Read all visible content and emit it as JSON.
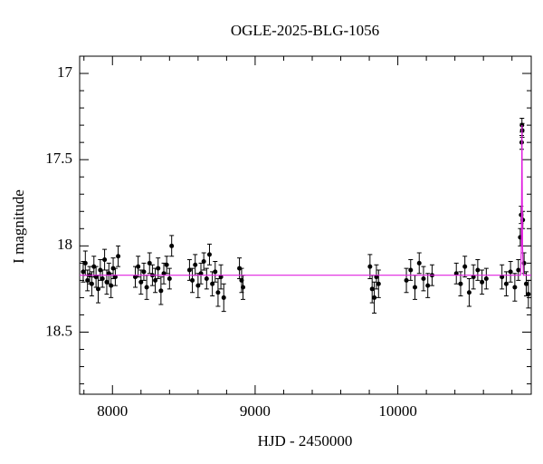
{
  "chart_data": {
    "type": "scatter",
    "title": "OGLE-2025-BLG-1056",
    "x_label": "HJD - 2450000",
    "y_label": "I magnitude",
    "xlim": [
      7770,
      10935
    ],
    "ylim": [
      18.86,
      16.9
    ],
    "xticks": [
      8000,
      9000,
      10000
    ],
    "yticks": [
      17,
      17.5,
      18,
      18.5
    ],
    "xminorticks": [
      7800,
      8200,
      8400,
      8600,
      8800,
      9200,
      9400,
      9600,
      9800,
      10200,
      10400,
      10600,
      10800
    ],
    "yminorticks": [
      17.1,
      17.2,
      17.3,
      17.4,
      17.6,
      17.7,
      17.8,
      17.9,
      18.1,
      18.2,
      18.3,
      18.4,
      18.6,
      18.7,
      18.8
    ],
    "color": "#000000",
    "x": [
      7795,
      7810,
      7825,
      7840,
      7855,
      7870,
      7885,
      7900,
      7915,
      7930,
      7945,
      7960,
      7975,
      7990,
      8005,
      8020,
      8040,
      8160,
      8180,
      8200,
      8220,
      8240,
      8260,
      8280,
      8300,
      8320,
      8340,
      8360,
      8380,
      8400,
      8415,
      8540,
      8560,
      8580,
      8600,
      8620,
      8640,
      8660,
      8680,
      8700,
      8720,
      8740,
      8760,
      8780,
      8890,
      8905,
      8915,
      9805,
      9820,
      9835,
      9850,
      9865,
      10060,
      10090,
      10120,
      10150,
      10180,
      10210,
      10240,
      10410,
      10440,
      10470,
      10500,
      10530,
      10560,
      10590,
      10620,
      10730,
      10760,
      10790,
      10820,
      10845,
      10858,
      10864,
      10868,
      10870,
      10872,
      10876,
      10885,
      10900,
      10915
    ],
    "values": [
      18.15,
      18.1,
      18.2,
      18.17,
      18.22,
      18.12,
      18.18,
      18.25,
      18.14,
      18.19,
      18.08,
      18.21,
      18.16,
      18.23,
      18.13,
      18.18,
      18.06,
      18.18,
      18.12,
      18.21,
      18.15,
      18.24,
      18.1,
      18.17,
      18.2,
      18.13,
      18.26,
      18.16,
      18.11,
      18.19,
      18.0,
      18.14,
      18.2,
      18.11,
      18.23,
      18.16,
      18.09,
      18.19,
      18.05,
      18.22,
      18.15,
      18.27,
      18.18,
      18.3,
      18.13,
      18.2,
      18.24,
      18.12,
      18.25,
      18.3,
      18.18,
      18.22,
      18.2,
      18.14,
      18.24,
      18.1,
      18.19,
      18.23,
      18.17,
      18.16,
      18.22,
      18.12,
      18.27,
      18.18,
      18.14,
      18.21,
      18.19,
      18.18,
      18.22,
      18.15,
      18.24,
      18.14,
      17.95,
      17.82,
      17.4,
      17.3,
      17.33,
      17.85,
      18.1,
      18.22,
      18.28
    ],
    "errors": [
      0.06,
      0.07,
      0.06,
      0.05,
      0.07,
      0.06,
      0.06,
      0.08,
      0.06,
      0.05,
      0.06,
      0.07,
      0.06,
      0.07,
      0.06,
      0.05,
      0.06,
      0.06,
      0.06,
      0.07,
      0.05,
      0.07,
      0.06,
      0.06,
      0.07,
      0.06,
      0.08,
      0.06,
      0.05,
      0.06,
      0.06,
      0.06,
      0.07,
      0.06,
      0.07,
      0.06,
      0.05,
      0.06,
      0.06,
      0.07,
      0.06,
      0.08,
      0.07,
      0.08,
      0.06,
      0.07,
      0.07,
      0.07,
      0.08,
      0.09,
      0.07,
      0.08,
      0.07,
      0.06,
      0.07,
      0.06,
      0.07,
      0.07,
      0.06,
      0.06,
      0.07,
      0.06,
      0.08,
      0.07,
      0.06,
      0.07,
      0.06,
      0.07,
      0.07,
      0.06,
      0.08,
      0.06,
      0.05,
      0.05,
      0.04,
      0.04,
      0.04,
      0.05,
      0.06,
      0.07,
      0.08
    ],
    "model": {
      "color": "#e020e0",
      "x": [
        7770,
        10860,
        10866,
        10870,
        10874,
        10880,
        10935
      ],
      "values": [
        18.17,
        18.17,
        18.0,
        17.3,
        18.0,
        18.17,
        18.17
      ]
    }
  }
}
